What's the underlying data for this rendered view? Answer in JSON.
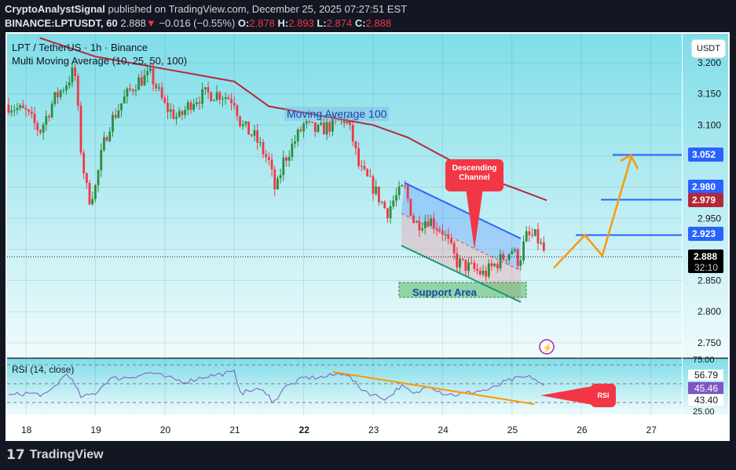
{
  "header": {
    "author": "CryptoAnalystSignal",
    "published_text": "published on TradingView.com, December 25, 2025 07:27:51 EST",
    "symbol": "BINANCE:LPTUSDT, 60",
    "last": "2.888",
    "change": "−0.016 (−0.55%)",
    "o_label": "O:",
    "o": "2.878",
    "h_label": "H:",
    "h": "2.893",
    "l_label": "L:",
    "l": "2.874",
    "c_label": "C:",
    "c": "2.888"
  },
  "legend": {
    "title": "LPT / TetherUS · 1h · Binance",
    "indicator": "Multi Moving Average (10, 25, 50, 100)",
    "rsi": "RSI (14, close)"
  },
  "currency_button": "USDT",
  "annotations": {
    "ma_label": "Moving Average 100",
    "channel_label": "Descending Channel",
    "support_label": "Support Area",
    "rsi_callout": "RSI"
  },
  "price_labels": {
    "level_3052": "3.052",
    "level_2980": "2.980",
    "ma100": "2.979",
    "level_2923": "2.923",
    "last": "2.888",
    "countdown": "32:10",
    "rsi_upper": "56.79",
    "rsi_value": "45.46",
    "rsi_lower": "43.40",
    "rsi_top": "75.00",
    "rsi_bottom": "25.00"
  },
  "footer": {
    "brand": "TradingView"
  },
  "colors": {
    "up": "#2e8b3a",
    "down": "#f23645",
    "ma100": "#b2283a",
    "rsi": "#7e57c2",
    "hline": "#2962ff",
    "projection": "#ff9800",
    "callout": "#f23645",
    "bg_top": "#7fdde8",
    "bg_bottom": "#f0fbfc"
  },
  "chart_data": [
    {
      "type": "candlestick",
      "timeframe": "1h",
      "x_ticks": [
        "18",
        "19",
        "20",
        "21",
        "22",
        "23",
        "24",
        "25",
        "26",
        "27"
      ],
      "y_ticks": [
        "3.200",
        "3.150",
        "3.100",
        "3.050",
        "3.000",
        "2.950",
        "2.900",
        "2.850",
        "2.800",
        "2.750"
      ],
      "ylim": [
        2.73,
        3.22
      ],
      "grid": true,
      "close_path_approx": [
        [
          17.8,
          3.13
        ],
        [
          18.0,
          3.12
        ],
        [
          18.2,
          3.09
        ],
        [
          18.4,
          3.14
        ],
        [
          18.6,
          3.17
        ],
        [
          18.7,
          3.19
        ],
        [
          18.8,
          3.05
        ],
        [
          18.9,
          2.98
        ],
        [
          19.0,
          3.0
        ],
        [
          19.1,
          3.06
        ],
        [
          19.2,
          3.1
        ],
        [
          19.4,
          3.14
        ],
        [
          19.6,
          3.17
        ],
        [
          19.8,
          3.18
        ],
        [
          20.0,
          3.13
        ],
        [
          20.2,
          3.11
        ],
        [
          20.4,
          3.14
        ],
        [
          20.6,
          3.15
        ],
        [
          20.8,
          3.15
        ],
        [
          21.0,
          3.14
        ],
        [
          21.1,
          3.1
        ],
        [
          21.3,
          3.08
        ],
        [
          21.5,
          3.04
        ],
        [
          21.6,
          2.99
        ],
        [
          21.7,
          3.04
        ],
        [
          21.9,
          3.08
        ],
        [
          22.0,
          3.1
        ],
        [
          22.2,
          3.09
        ],
        [
          22.4,
          3.1
        ],
        [
          22.6,
          3.11
        ],
        [
          22.7,
          3.08
        ],
        [
          22.8,
          3.03
        ],
        [
          23.0,
          3.0
        ],
        [
          23.2,
          2.96
        ],
        [
          23.3,
          2.98
        ],
        [
          23.45,
          3.0
        ],
        [
          23.6,
          2.94
        ],
        [
          23.8,
          2.95
        ],
        [
          24.0,
          2.93
        ],
        [
          24.2,
          2.88
        ],
        [
          24.4,
          2.87
        ],
        [
          24.6,
          2.86
        ],
        [
          24.8,
          2.88
        ],
        [
          25.0,
          2.9
        ],
        [
          25.1,
          2.88
        ],
        [
          25.2,
          2.92
        ],
        [
          25.35,
          2.92
        ],
        [
          25.5,
          2.888
        ]
      ],
      "ma100_approx": [
        [
          18.2,
          3.24
        ],
        [
          19.0,
          3.21
        ],
        [
          20.0,
          3.19
        ],
        [
          21.0,
          3.17
        ],
        [
          21.5,
          3.13
        ],
        [
          22.0,
          3.12
        ],
        [
          22.5,
          3.11
        ],
        [
          23.0,
          3.1
        ],
        [
          23.5,
          3.08
        ],
        [
          24.0,
          3.05
        ],
        [
          24.5,
          3.02
        ],
        [
          25.0,
          3.0
        ],
        [
          25.5,
          2.979
        ]
      ],
      "horizontal_levels": [
        3.052,
        2.98,
        2.923
      ],
      "projection_path": [
        [
          25.6,
          2.87
        ],
        [
          26.05,
          2.923
        ],
        [
          26.3,
          2.89
        ],
        [
          26.72,
          3.05
        ]
      ],
      "last_price": 2.888
    },
    {
      "type": "line",
      "name": "RSI (14, close)",
      "ylim": [
        25,
        75
      ],
      "bands": [
        70,
        50,
        30
      ],
      "values_approx": [
        [
          17.75,
          37
        ],
        [
          18.0,
          40
        ],
        [
          18.3,
          38
        ],
        [
          18.6,
          62
        ],
        [
          18.8,
          35
        ],
        [
          19.0,
          40
        ],
        [
          19.2,
          55
        ],
        [
          19.5,
          57
        ],
        [
          19.8,
          62
        ],
        [
          20.0,
          57
        ],
        [
          20.3,
          52
        ],
        [
          20.6,
          58
        ],
        [
          21.0,
          62
        ],
        [
          21.1,
          40
        ],
        [
          21.3,
          44
        ],
        [
          21.5,
          40
        ],
        [
          21.55,
          27
        ],
        [
          21.7,
          45
        ],
        [
          21.9,
          52
        ],
        [
          22.0,
          56
        ],
        [
          22.3,
          57
        ],
        [
          22.6,
          62
        ],
        [
          22.8,
          46
        ],
        [
          23.0,
          38
        ],
        [
          23.2,
          34
        ],
        [
          23.4,
          48
        ],
        [
          23.6,
          38
        ],
        [
          23.8,
          49
        ],
        [
          24.0,
          40
        ],
        [
          24.2,
          38
        ],
        [
          24.5,
          42
        ],
        [
          24.7,
          44
        ],
        [
          24.9,
          52
        ],
        [
          25.1,
          56
        ],
        [
          25.3,
          57
        ],
        [
          25.45,
          47
        ],
        [
          25.5,
          46
        ]
      ],
      "trendline": [
        [
          22.42,
          61
        ],
        [
          25.32,
          26
        ]
      ]
    }
  ]
}
